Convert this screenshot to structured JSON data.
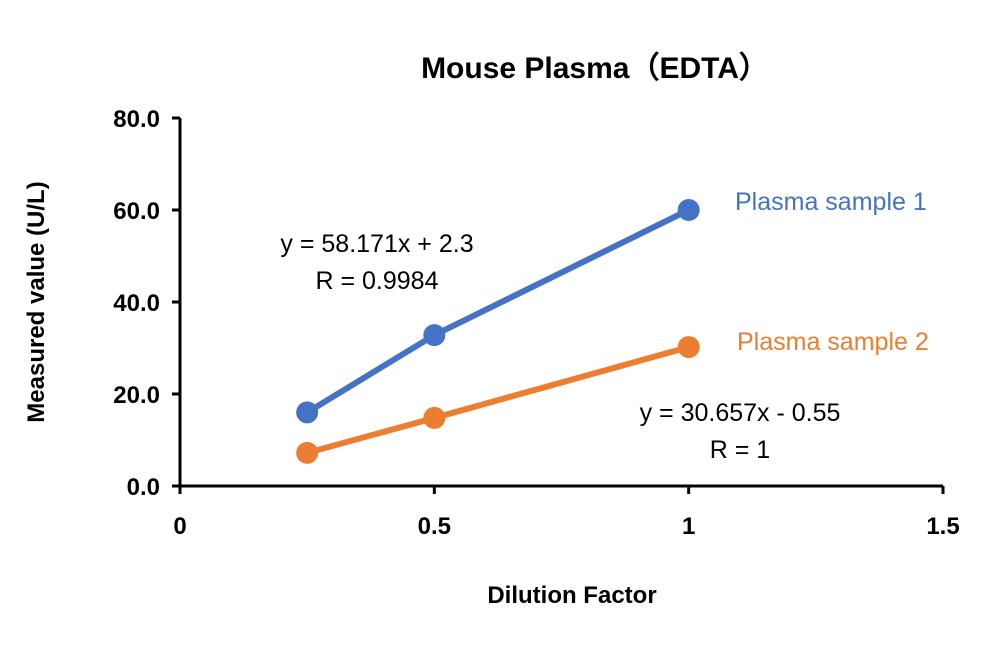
{
  "chart_data": {
    "type": "line",
    "title": "Mouse Plasma（EDTA）",
    "xlabel": "Dilution Factor",
    "ylabel": "Measured value (U/L)",
    "xlim": [
      0,
      1.5
    ],
    "ylim": [
      0,
      80
    ],
    "x_ticks": [
      "0",
      "0.5",
      "1",
      "1.5"
    ],
    "y_ticks": [
      "0.0",
      "20.0",
      "40.0",
      "60.0",
      "80.0"
    ],
    "grid": false,
    "series": [
      {
        "name": "Plasma sample 1",
        "color": "#4472C4",
        "x": [
          0.25,
          0.5,
          1
        ],
        "y": [
          16.0,
          32.8,
          60.0
        ],
        "equation": "y = 58.171x + 2.3",
        "r": "R = 0.9984"
      },
      {
        "name": "Plasma sample 2",
        "color": "#ED7D31",
        "x": [
          0.25,
          0.5,
          1
        ],
        "y": [
          7.2,
          14.8,
          30.2
        ],
        "equation": "y = 30.657x - 0.55",
        "r": "R = 1"
      }
    ]
  }
}
